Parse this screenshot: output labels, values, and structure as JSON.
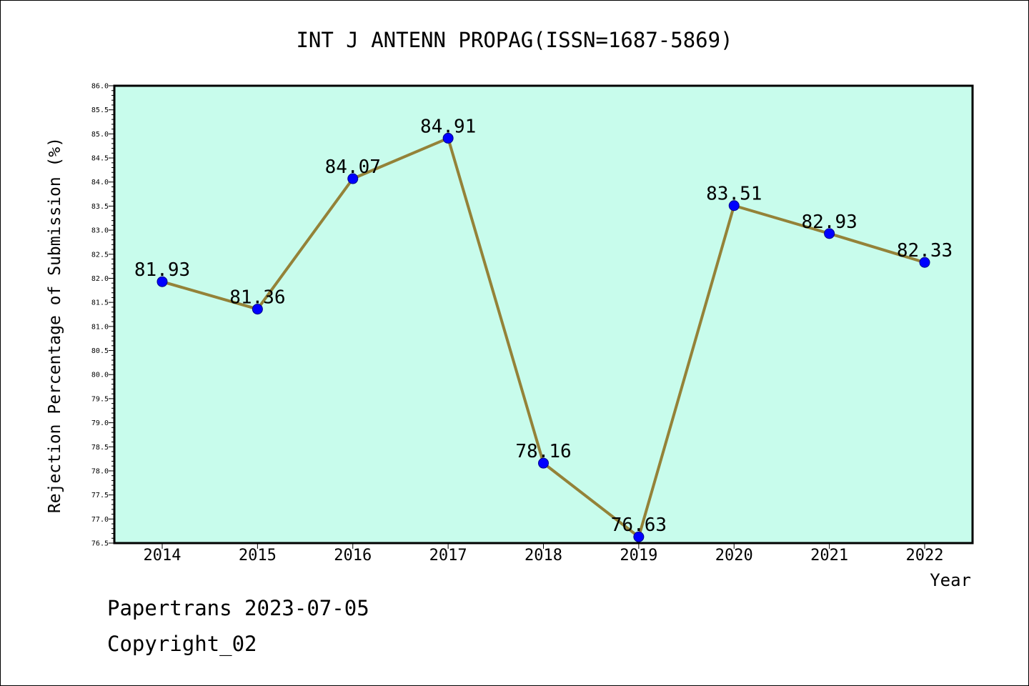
{
  "chart_data": {
    "type": "line",
    "title": "INT J ANTENN PROPAG(ISSN=1687-5869)",
    "xlabel": "Year",
    "ylabel": "Rejection Percentage of Submission (%)",
    "categories": [
      "2014",
      "2015",
      "2016",
      "2017",
      "2018",
      "2019",
      "2020",
      "2021",
      "2022"
    ],
    "series": [
      {
        "values": [
          81.93,
          81.36,
          84.07,
          84.91,
          78.16,
          76.63,
          83.51,
          82.93,
          82.33
        ],
        "labels": [
          "81.93",
          "81.36",
          "84.07",
          "84.91",
          "78.16",
          "76.63",
          "83.51",
          "82.93",
          "82.33"
        ]
      }
    ],
    "ylim": [
      76.5,
      86.0
    ],
    "yticks": [
      "76.5",
      "77.0",
      "77.5",
      "78.0",
      "78.5",
      "79.0",
      "79.5",
      "80.0",
      "80.5",
      "81.0",
      "81.5",
      "82.0",
      "82.5",
      "83.0",
      "83.5",
      "84.0",
      "84.5",
      "85.0",
      "85.5",
      "86.0"
    ],
    "grid": false,
    "colors": {
      "plot_background": "#c8fcec",
      "line": "#948238",
      "marker": "#0000ff"
    }
  },
  "footer": {
    "line1": "Papertrans 2023-07-05",
    "line2": "Copyright_02"
  }
}
